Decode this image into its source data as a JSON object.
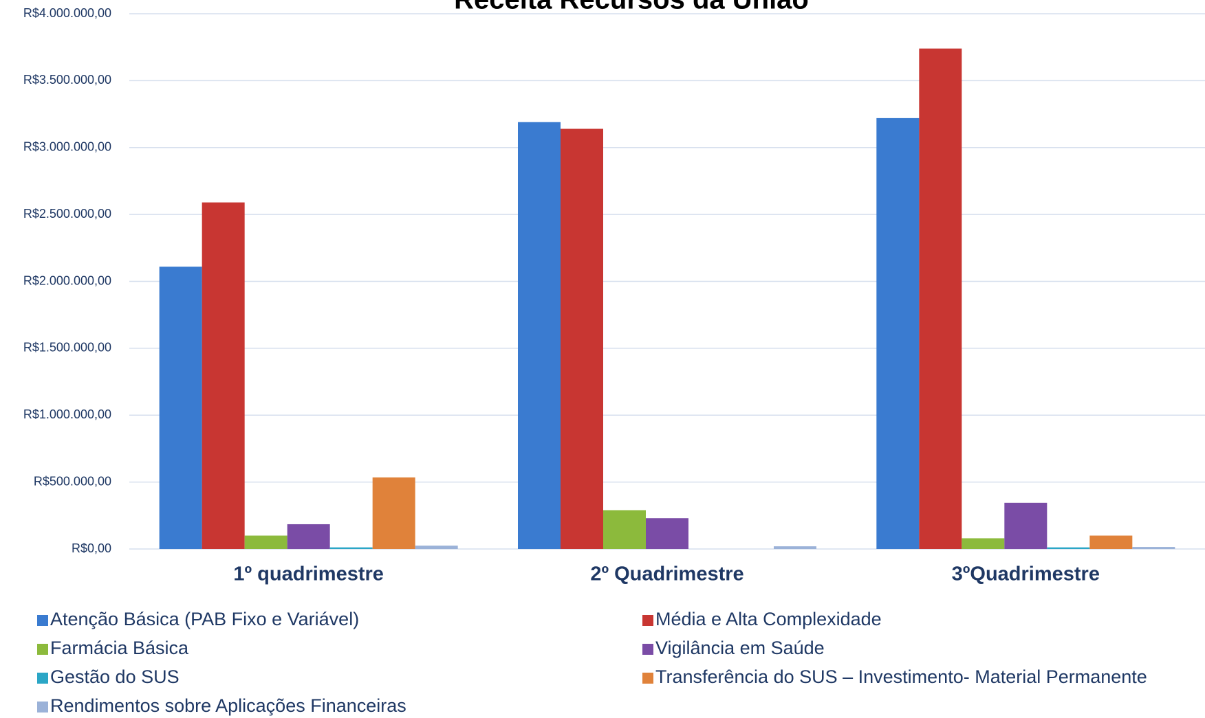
{
  "chart_data": {
    "type": "bar",
    "title": "Receita Recursos da União",
    "categories": [
      "1º quadrimestre",
      "2º Quadrimestre",
      "3ºQuadrimestre"
    ],
    "series": [
      {
        "name": "Atenção Básica (PAB Fixo e  Variável)",
        "color": "#3a7bd0",
        "values": [
          2110000,
          3190000,
          3220000
        ]
      },
      {
        "name": "Média e Alta Complexidade",
        "color": "#c83632",
        "values": [
          2590000,
          3140000,
          3740000
        ]
      },
      {
        "name": "Farmácia Básica",
        "color": "#8cba3c",
        "values": [
          100000,
          290000,
          80000
        ]
      },
      {
        "name": "Vigilância em Saúde",
        "color": "#7a4ca6",
        "values": [
          185000,
          230000,
          345000
        ]
      },
      {
        "name": "Gestão do SUS",
        "color": "#2ba6c6",
        "values": [
          12000,
          0,
          12000
        ]
      },
      {
        "name": "Transferência do SUS – Investimento- Material Permanente",
        "color": "#e0823a",
        "values": [
          535000,
          0,
          100000
        ]
      },
      {
        "name": "Rendimentos sobre Aplicações  Financeiras",
        "color": "#9bb2d8",
        "values": [
          25000,
          20000,
          15000
        ]
      }
    ],
    "ylim": [
      0,
      4000000
    ],
    "yticks": [
      {
        "value": 0,
        "label": "R$0,00"
      },
      {
        "value": 500000,
        "label": "R$500.000,00"
      },
      {
        "value": 1000000,
        "label": "R$1.000.000,00"
      },
      {
        "value": 1500000,
        "label": "R$1.500.000,00"
      },
      {
        "value": 2000000,
        "label": "R$2.000.000,00"
      },
      {
        "value": 2500000,
        "label": "R$2.500.000,00"
      },
      {
        "value": 3000000,
        "label": "R$3.000.000,00"
      },
      {
        "value": 3500000,
        "label": "R$3.500.000,00"
      },
      {
        "value": 4000000,
        "label": "R$4.000.000,00"
      }
    ],
    "grid": true
  }
}
